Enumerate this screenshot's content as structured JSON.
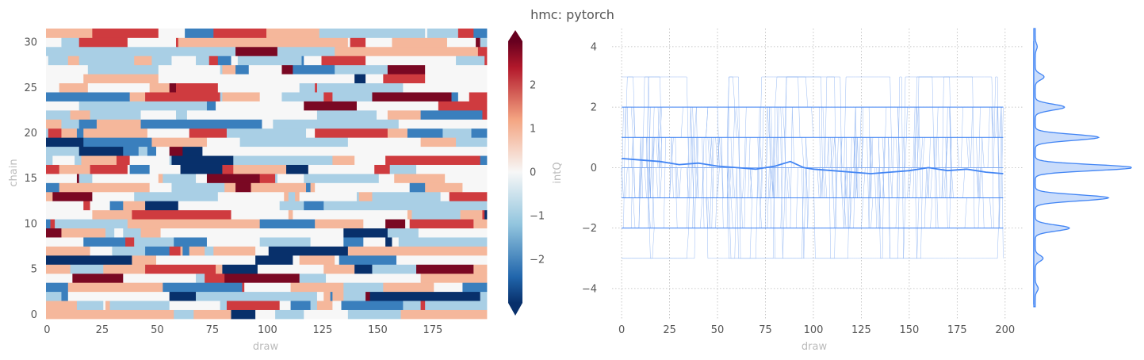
{
  "title": "hmc: pytorch",
  "colors": {
    "line": "#4285f4",
    "line_light": "#7faaf0",
    "kde_fill": "#c9dcfb",
    "grid": "#b8b8b8",
    "cmap_low": "#08306b",
    "cmap_mid": "#f7f7f7",
    "cmap_high": "#67001f"
  },
  "chart_data": [
    {
      "type": "heatmap",
      "xlabel": "draw",
      "ylabel": "chain",
      "x_range": [
        0,
        199
      ],
      "y_range": [
        0,
        31
      ],
      "n_draws": 200,
      "n_chains": 32,
      "xticks": [
        0,
        25,
        50,
        75,
        100,
        125,
        150,
        175
      ],
      "yticks": [
        0,
        5,
        10,
        15,
        20,
        25,
        30
      ],
      "value_levels": [
        -3,
        -2,
        -1,
        0,
        1,
        2,
        3
      ],
      "colorbar": {
        "label": "intQ",
        "range": [
          -3,
          3
        ],
        "ticks": [
          -2,
          -1,
          0,
          1,
          2
        ],
        "extend": "both",
        "cmap": "RdBu_r"
      }
    },
    {
      "type": "line",
      "xlabel": "draw",
      "ylabel": "",
      "xlim": [
        -5,
        210
      ],
      "ylim": [
        -5,
        4.6
      ],
      "xticks": [
        0,
        25,
        50,
        75,
        100,
        125,
        150,
        175,
        200
      ],
      "yticks": [
        -4,
        -2,
        0,
        2,
        4
      ],
      "grid": true,
      "traces": "integer-valued intQ chain traces, values in [-4, 4]",
      "mean_trace": {
        "x": [
          0,
          10,
          20,
          30,
          40,
          50,
          60,
          70,
          80,
          88,
          95,
          100,
          110,
          120,
          130,
          140,
          150,
          160,
          170,
          180,
          190,
          199
        ],
        "y": [
          0.3,
          0.25,
          0.2,
          0.1,
          0.15,
          0.05,
          0.0,
          -0.05,
          0.05,
          0.2,
          0.0,
          -0.05,
          -0.1,
          -0.15,
          -0.2,
          -0.15,
          -0.1,
          0.0,
          -0.1,
          -0.05,
          -0.15,
          -0.2
        ]
      },
      "kde": {
        "peak_values": [
          -4,
          -3,
          -2,
          -1,
          0,
          1,
          2,
          3,
          4
        ],
        "relative_density": [
          0.03,
          0.08,
          0.35,
          0.75,
          1.0,
          0.65,
          0.3,
          0.09,
          0.02
        ]
      }
    }
  ]
}
